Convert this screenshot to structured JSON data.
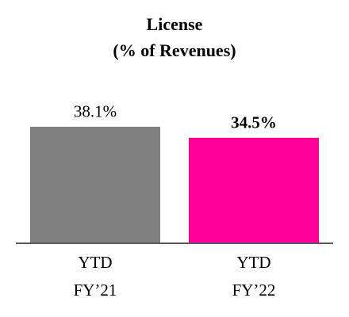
{
  "chart_data": {
    "type": "bar",
    "title": [
      "License",
      "(% of Revenues)"
    ],
    "categories": [
      [
        "YTD",
        "FY’21"
      ],
      [
        "YTD",
        "FY’22"
      ]
    ],
    "values": [
      38.1,
      34.5
    ],
    "value_labels": [
      "38.1%",
      "34.5%"
    ],
    "value_labels_bold": [
      false,
      true
    ],
    "colors": [
      "#808080",
      "#ff0099"
    ]
  }
}
